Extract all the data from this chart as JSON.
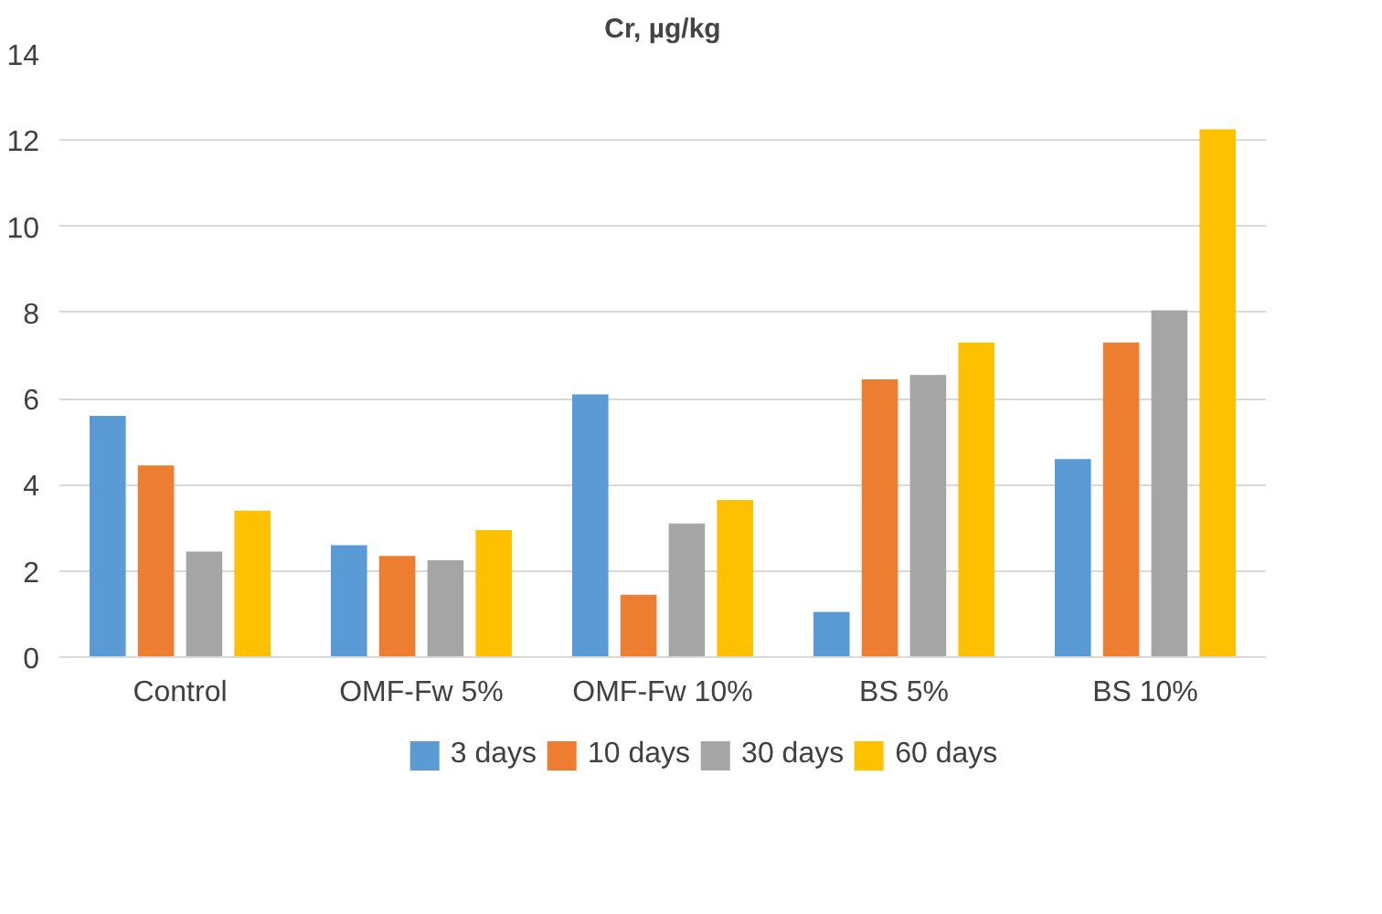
{
  "chart_data": {
    "type": "bar",
    "title": "Cr, µg/kg",
    "categories": [
      "Control",
      "OMF-Fw 5%",
      "OMF-Fw 10%",
      "BS 5%",
      "BS 10%"
    ],
    "series": [
      {
        "name": "3 days",
        "color": "#5b9bd5",
        "values": [
          5.6,
          2.6,
          6.1,
          1.05,
          4.6
        ]
      },
      {
        "name": "10 days",
        "color": "#ed7d31",
        "values": [
          4.45,
          2.35,
          1.45,
          6.45,
          7.3
        ]
      },
      {
        "name": "30 days",
        "color": "#a5a5a5",
        "values": [
          2.45,
          2.25,
          3.1,
          6.55,
          8.05
        ]
      },
      {
        "name": "60 days",
        "color": "#ffc000",
        "values": [
          3.4,
          2.95,
          3.65,
          7.3,
          12.25
        ]
      }
    ],
    "ylim": [
      0,
      14
    ],
    "yticks": [
      0,
      2,
      4,
      6,
      8,
      10,
      12,
      14
    ],
    "grid": "y",
    "legend": "bottom"
  }
}
